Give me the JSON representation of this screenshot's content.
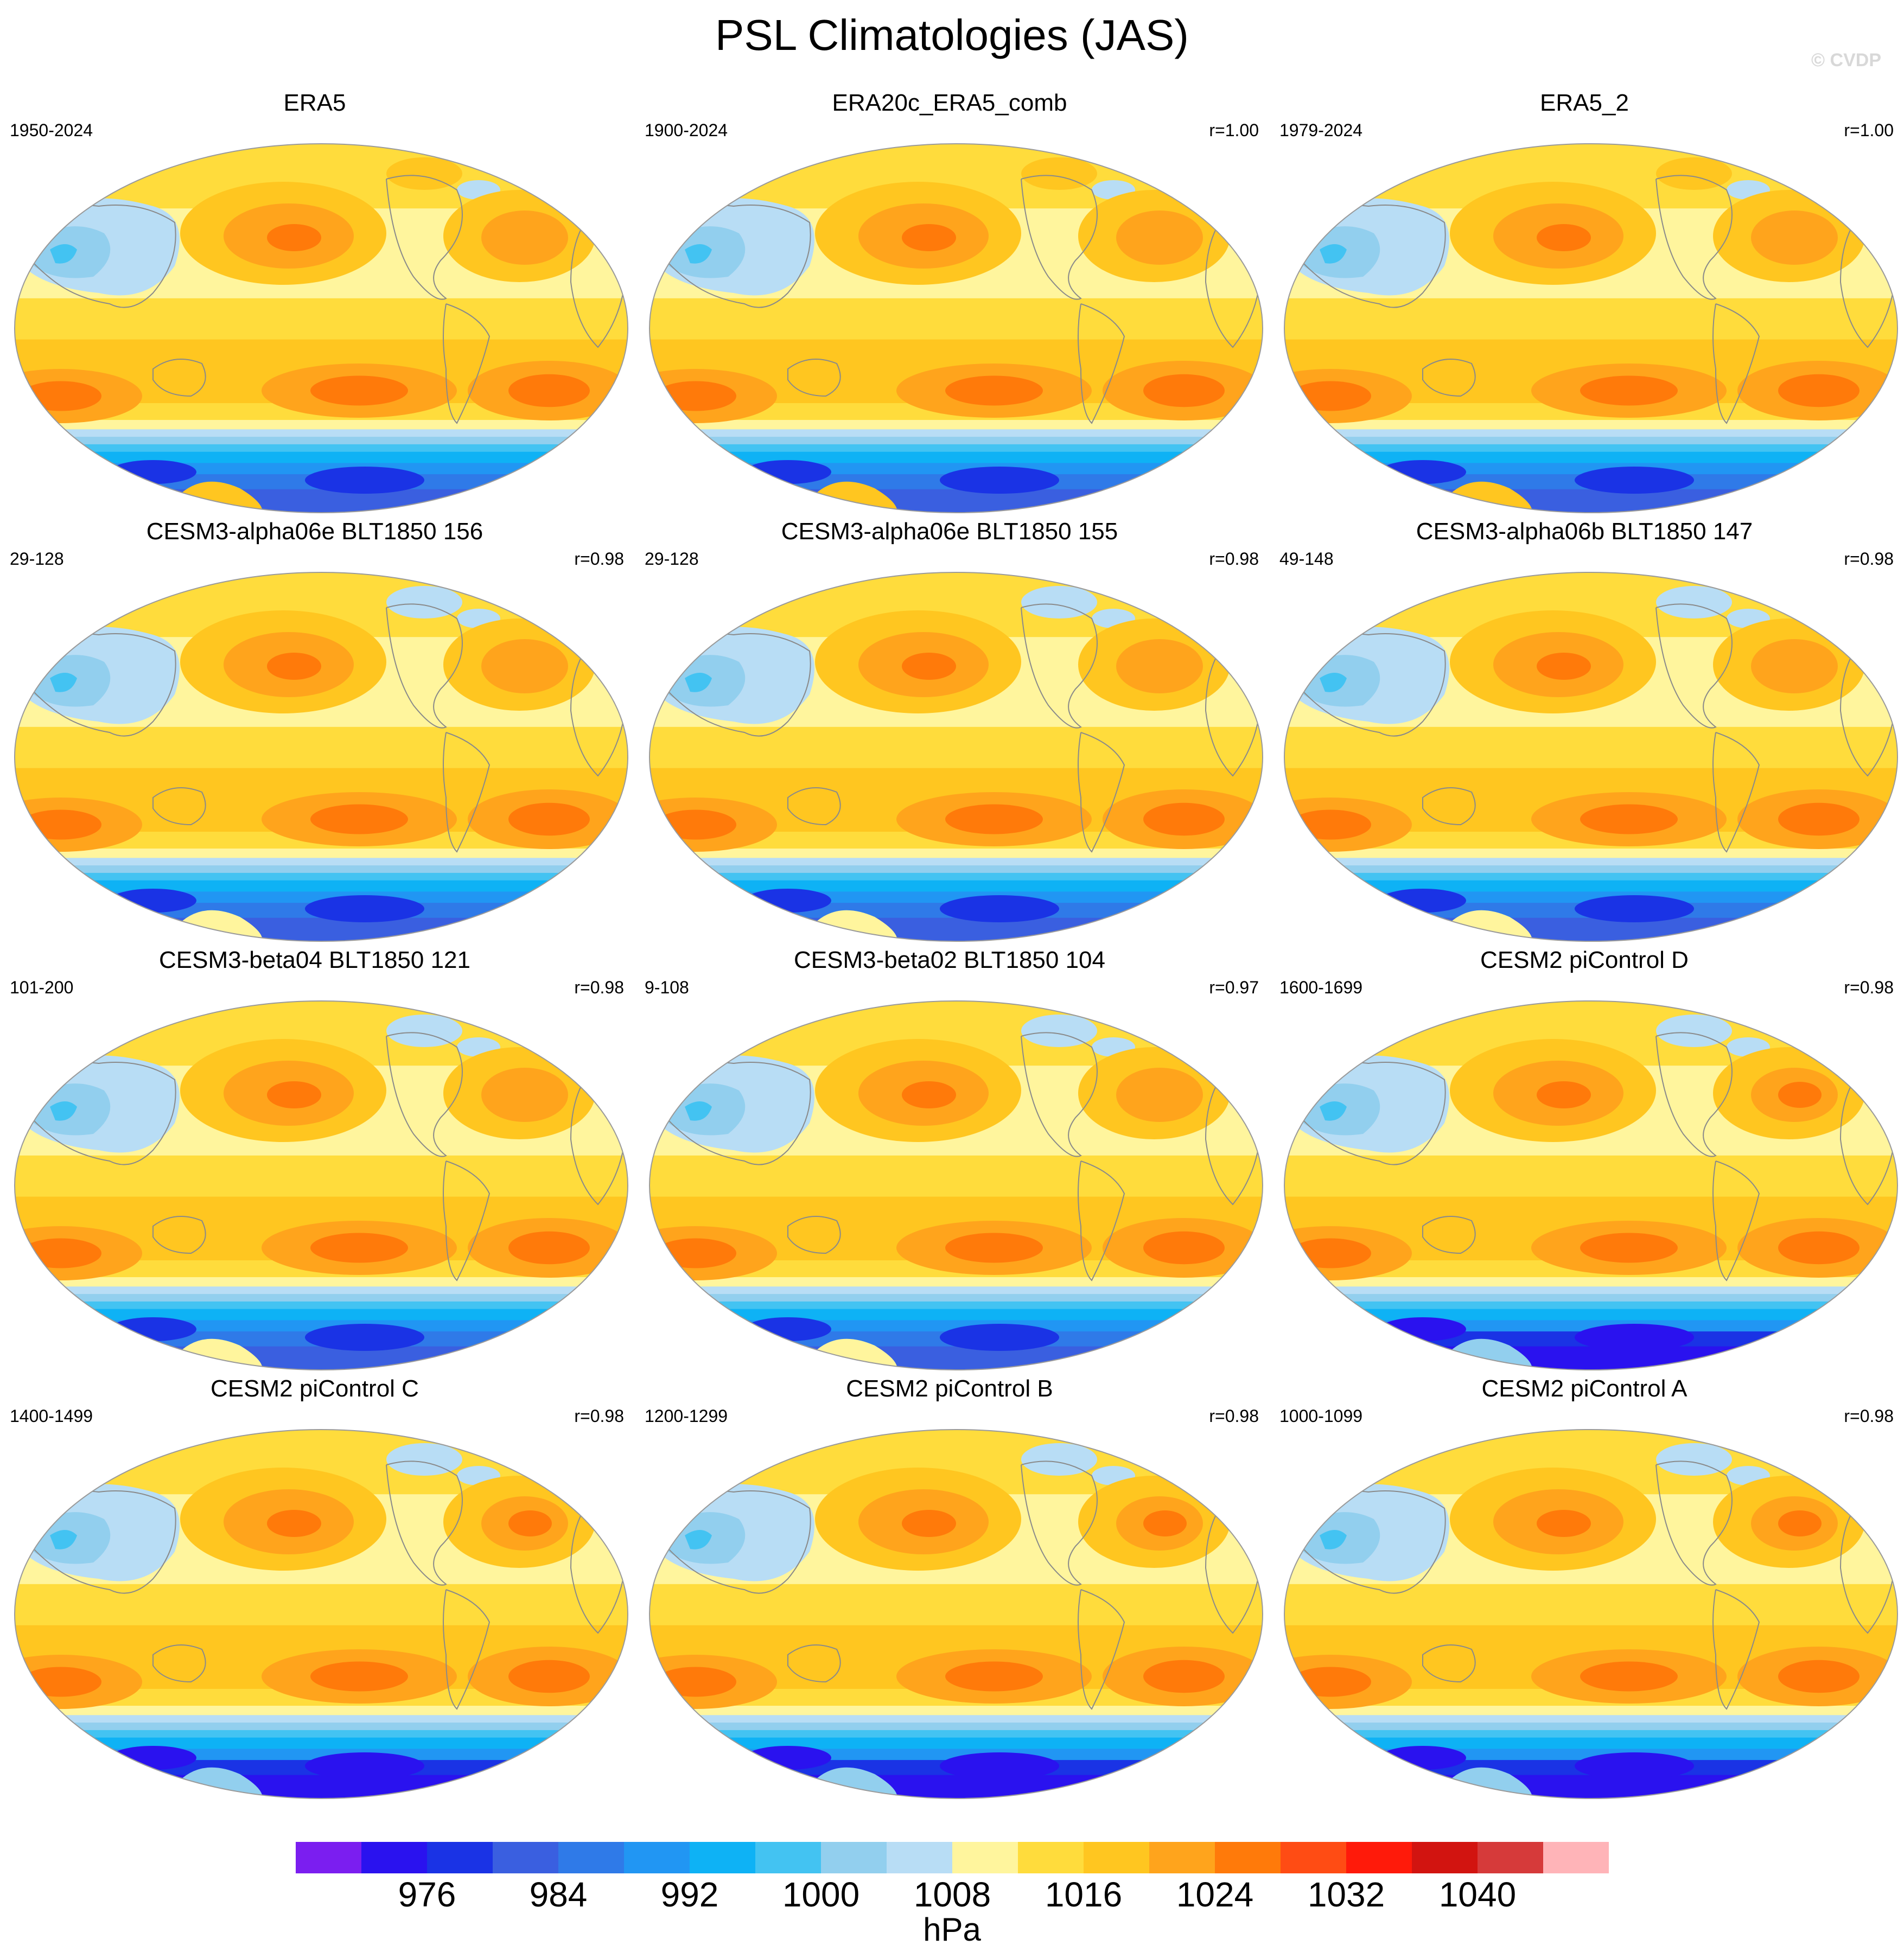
{
  "title": "PSL Climatologies (JAS)",
  "watermark": "© CVDP",
  "units": "hPa",
  "colorbar": {
    "colors": [
      "#7b1ef0",
      "#2a12ef",
      "#1a33e5",
      "#3a5fe0",
      "#2f7ae8",
      "#2196f3",
      "#0eb2f5",
      "#43c3f2",
      "#92cfee",
      "#b8ddf5",
      "#fff59d",
      "#ffdc3c",
      "#ffc620",
      "#ffa41c",
      "#ff7a0a",
      "#ff4c14",
      "#ff1a0a",
      "#d21410",
      "#d63a3a",
      "#ffb4b8"
    ],
    "labels": [
      "976",
      "984",
      "992",
      "1000",
      "1008",
      "1016",
      "1024",
      "1032",
      "1040"
    ],
    "label_boundary_index": [
      2,
      4,
      6,
      8,
      10,
      12,
      14,
      16,
      18
    ]
  },
  "chart_data": {
    "type": "heatmap",
    "variable": "PSL",
    "season": "JAS",
    "units": "hPa",
    "levels": [
      968,
      972,
      976,
      980,
      984,
      988,
      992,
      996,
      1000,
      1004,
      1008,
      1012,
      1016,
      1020,
      1024,
      1028,
      1032,
      1036,
      1040,
      1044
    ],
    "panels": [
      {
        "title": "ERA5",
        "period": "1950-2024",
        "r": ""
      },
      {
        "title": "ERA20c_ERA5_comb",
        "period": "1900-2024",
        "r": "r=1.00"
      },
      {
        "title": "ERA5_2",
        "period": "1979-2024",
        "r": "r=1.00"
      },
      {
        "title": "CESM3-alpha06e BLT1850 156",
        "period": "29-128",
        "r": "r=0.98"
      },
      {
        "title": "CESM3-alpha06e BLT1850 155",
        "period": "29-128",
        "r": "r=0.98"
      },
      {
        "title": "CESM3-alpha06b BLT1850 147",
        "period": "49-148",
        "r": "r=0.98"
      },
      {
        "title": "CESM3-beta04 BLT1850 121",
        "period": "101-200",
        "r": "r=0.98"
      },
      {
        "title": "CESM3-beta02 BLT1850 104",
        "period": "9-108",
        "r": "r=0.97"
      },
      {
        "title": "CESM2 piControl D",
        "period": "1600-1699",
        "r": "r=0.98"
      },
      {
        "title": "CESM2 piControl C",
        "period": "1400-1499",
        "r": "r=0.98"
      },
      {
        "title": "CESM2 piControl B",
        "period": "1200-1299",
        "r": "r=0.98"
      },
      {
        "title": "CESM2 piControl A",
        "period": "1000-1099",
        "r": "r=0.98"
      }
    ]
  }
}
